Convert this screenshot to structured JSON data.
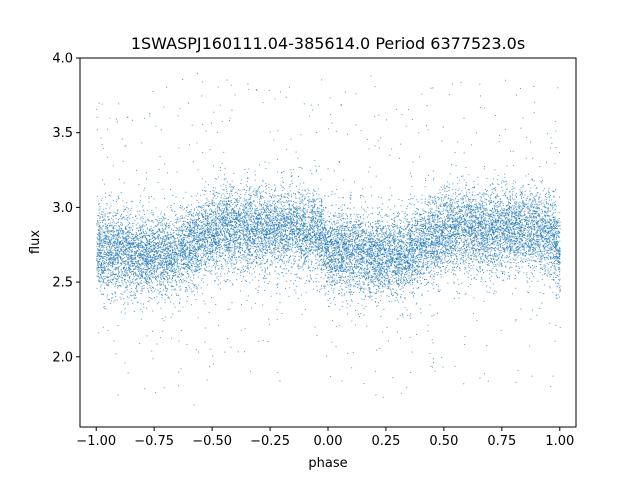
{
  "chart_data": {
    "type": "scatter",
    "title": "1SWASPJ160111.04-385614.0 Period 6377523.0s",
    "xlabel": "phase",
    "ylabel": "flux",
    "xlim": [
      -1.07,
      1.07
    ],
    "ylim": [
      1.53,
      4.0
    ],
    "xticks": [
      -1.0,
      -0.75,
      -0.5,
      -0.25,
      0.0,
      0.25,
      0.5,
      0.75,
      1.0
    ],
    "xtick_labels": [
      "−1.00",
      "−0.75",
      "−0.50",
      "−0.25",
      "0.00",
      "0.25",
      "0.50",
      "0.75",
      "1.00"
    ],
    "yticks": [
      2.0,
      2.5,
      3.0,
      3.5,
      4.0
    ],
    "ytick_labels": [
      "2.0",
      "2.5",
      "3.0",
      "3.5",
      "4.0"
    ],
    "grid": false,
    "marker_color": "#1f77b4",
    "x_range": [
      -1.0,
      1.0
    ],
    "phase_profile": [
      [
        0.0,
        2.7
      ],
      [
        0.08,
        2.72
      ],
      [
        0.16,
        2.68
      ],
      [
        0.25,
        2.68
      ],
      [
        0.33,
        2.68
      ],
      [
        0.43,
        2.78
      ],
      [
        0.53,
        2.85
      ],
      [
        0.62,
        2.85
      ],
      [
        0.7,
        2.85
      ],
      [
        0.8,
        2.86
      ],
      [
        0.9,
        2.84
      ],
      [
        0.96,
        2.82
      ],
      [
        1.0,
        2.7
      ]
    ],
    "scatter_sd": 0.14,
    "point_count": 16000
  }
}
